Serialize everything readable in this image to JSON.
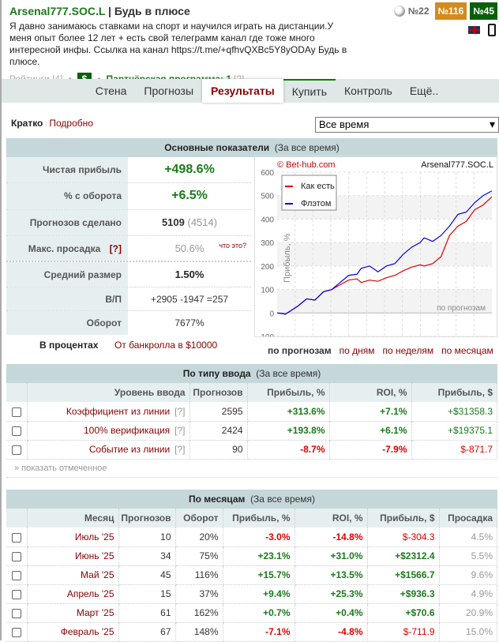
{
  "header": {
    "nick": "Arsenal777.SOC.L",
    "separator": "|",
    "slogan": "Будь в плюсе",
    "description": "Я давно занимаюсь ставками на спорт и научился играть на дистанции.У меня опыт более 12 лет + есть свой телеграмм канал где тоже много интересной инфы. Ссылка на канал https://t.me/+qfhvQXBc5Y8yODAy Будь в плюсе.",
    "ratings": "Рейтинги [4]",
    "dot": "•",
    "dollar": "$",
    "partner": "Партнёрская программа: 1",
    "partner_help": "[?]",
    "rank_sport": "№22",
    "rank_a": "№116",
    "rank_b": "№45",
    "rank_a_color": "#d48a1c",
    "rank_b_color": "#0a5f0a"
  },
  "nav": {
    "tabs": [
      "Стена",
      "Прогнозы",
      "Результаты",
      "Купить",
      "Контроль",
      "Ещё.."
    ],
    "active": "Результаты"
  },
  "filter": {
    "short": "Кратко",
    "detailed": "Подробно",
    "period": "Все время"
  },
  "main": {
    "title": "Основные показатели",
    "period": "(За все время)",
    "rows": [
      {
        "label": "Чистая прибыль",
        "value": "+498.6%"
      },
      {
        "label": "% с оборота",
        "value": "+6.5%"
      },
      {
        "label": "Прогнозов сделано",
        "value": "5109",
        "extra": "(4514)"
      },
      {
        "label": "Макс. просадка",
        "help": "[?]",
        "value": "50.6%",
        "extra": "что это?"
      },
      {
        "label": "Средний размер",
        "value": "1.50%"
      },
      {
        "label": "В/П",
        "value": "+2905 -1947 =257"
      },
      {
        "label": "Оборот",
        "value": "7677%"
      }
    ],
    "in_percent": "В процентах",
    "bankroll": "От банкролла в $10000",
    "views": [
      "по прогнозам",
      "по дням",
      "по неделям",
      "по месяцам"
    ]
  },
  "chart_data": {
    "type": "line",
    "copyright": "© Bet-hub.com",
    "title": "Arsenal777.SOC.L",
    "ylabel": "Прибыль, %",
    "xlabel": "по прогнозам",
    "ylim": [
      -100,
      600
    ],
    "xlim": [
      0,
      5109
    ],
    "yticks": [
      600,
      500,
      400,
      300,
      200,
      100,
      0,
      -100
    ],
    "grid": true,
    "legend": "top-left",
    "x": [
      0,
      200,
      500,
      700,
      900,
      1100,
      1300,
      1500,
      1700,
      1900,
      2000,
      2200,
      2400,
      2600,
      2800,
      3000,
      3200,
      3400,
      3500,
      3700,
      3900,
      4100,
      4300,
      4500,
      4700,
      4900,
      5109
    ],
    "series": [
      {
        "name": "Как есть",
        "color": "#e00000",
        "values": [
          0,
          -5,
          30,
          60,
          55,
          90,
          100,
          120,
          140,
          145,
          130,
          140,
          135,
          150,
          160,
          180,
          195,
          205,
          200,
          210,
          240,
          330,
          370,
          390,
          440,
          460,
          495
        ]
      },
      {
        "name": "Флэтом",
        "color": "#0000e0",
        "values": [
          0,
          -5,
          30,
          60,
          55,
          90,
          100,
          130,
          160,
          165,
          190,
          200,
          175,
          200,
          210,
          250,
          280,
          300,
          320,
          305,
          330,
          370,
          420,
          430,
          470,
          500,
          520
        ]
      }
    ]
  },
  "by_type": {
    "title": "По типу ввода",
    "period": "(За все время)",
    "headers": [
      "Уровень ввода",
      "Прогнозов",
      "Прибыль, %",
      "ROI, %",
      "Прибыль, $"
    ],
    "rows": [
      [
        "Коэффициент из линии",
        "2595",
        "+313.6%",
        "+7.1%",
        "+$31358.3"
      ],
      [
        "100% верификация",
        "2424",
        "+193.8%",
        "+6.1%",
        "+$19375.1"
      ],
      [
        "Событие из линии",
        "90",
        "-8.7%",
        "-7.9%",
        "$-871.7"
      ]
    ],
    "help": "[?]",
    "show_marked": "» показать отмеченное"
  },
  "by_month": {
    "title": "По месяцам",
    "period": "(За все время)",
    "headers": [
      "Месяц",
      "Прогнозов",
      "Оборот",
      "Прибыль, %",
      "ROI, %",
      "Прибыль, $",
      "Просадка"
    ],
    "rows": [
      [
        "Июль '25",
        "10",
        "20%",
        "-3.0%",
        "-14.8%",
        "$-304.3",
        "4.5%"
      ],
      [
        "Июнь '25",
        "34",
        "75%",
        "+23.1%",
        "+31.0%",
        "+$2312.4",
        "5.5%"
      ],
      [
        "Май '25",
        "45",
        "116%",
        "+15.7%",
        "+13.5%",
        "+$1566.7",
        "9.6%"
      ],
      [
        "Апрель '25",
        "15",
        "37%",
        "+9.4%",
        "+25.3%",
        "+$936.3",
        "4.9%"
      ],
      [
        "Март '25",
        "61",
        "162%",
        "+0.7%",
        "+0.4%",
        "+$70.6",
        "20.9%"
      ],
      [
        "Февраль '25",
        "67",
        "148%",
        "-7.1%",
        "-4.8%",
        "$-711.9",
        "15.0%"
      ]
    ]
  }
}
